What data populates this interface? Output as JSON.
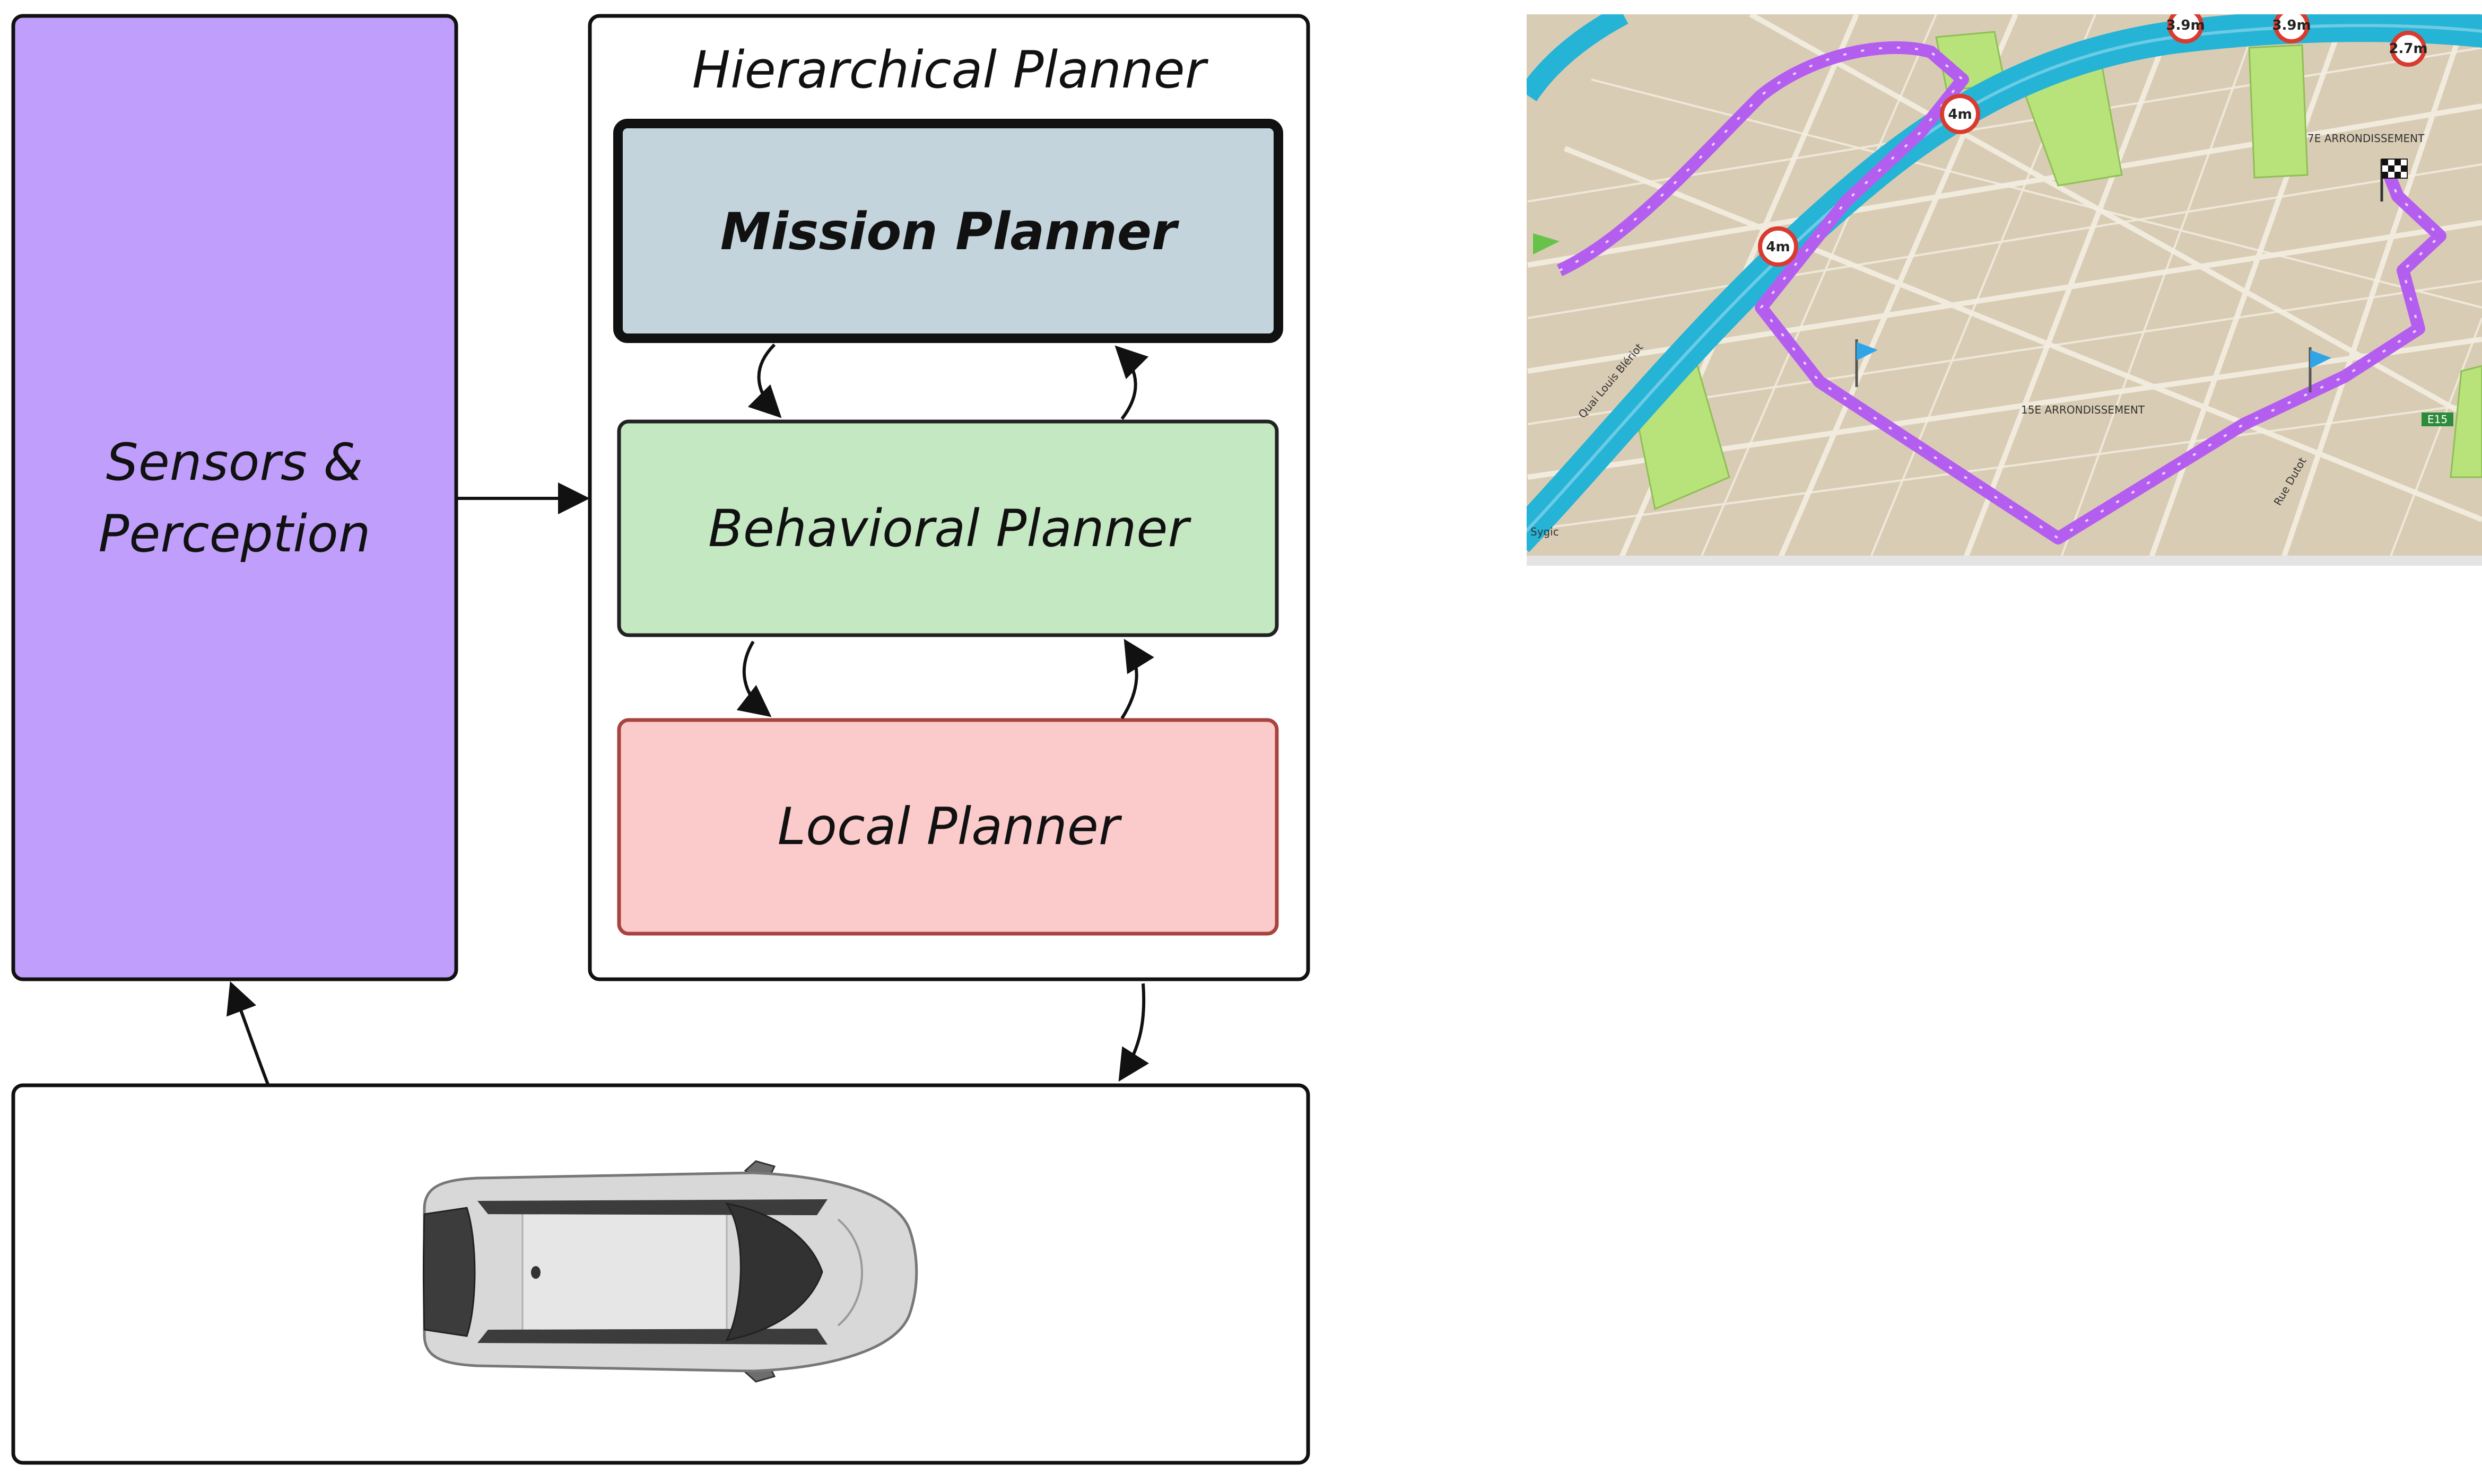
{
  "colors": {
    "sensors_fill": "#bf9ffb",
    "mission_fill": "#c4d4dc",
    "behavioral_fill": "#c3e8c2",
    "behavioral_stroke": "#222222",
    "local_fill": "#fbcaca",
    "local_stroke": "#a8443f",
    "stroke": "#111111",
    "map_ground": "#d9ccb4",
    "map_river": "#25b4d6",
    "map_park": "#b8e27a",
    "map_route": "#b45ef0"
  },
  "diagram": {
    "sensors_label_line1": "Sensors &",
    "sensors_label_line2": "Perception",
    "hierarchical_title": "Hierarchical Planner",
    "mission_label": "Mission Planner",
    "behavioral_label": "Behavioral Planner",
    "local_label": "Local Planner"
  },
  "map": {
    "labels": {
      "arr7": "7E ARRONDISSEMENT",
      "arr15": "15E ARRONDISSEMENT",
      "quai": "Quai Louis Blériot",
      "rue": "Rue Dutot",
      "road_code": "E15",
      "corner": "Sygic"
    },
    "signs": {
      "s1": "3.9m",
      "s2": "3.9m",
      "s3": "2.7m",
      "s4": "4m",
      "s5": "4m"
    }
  }
}
